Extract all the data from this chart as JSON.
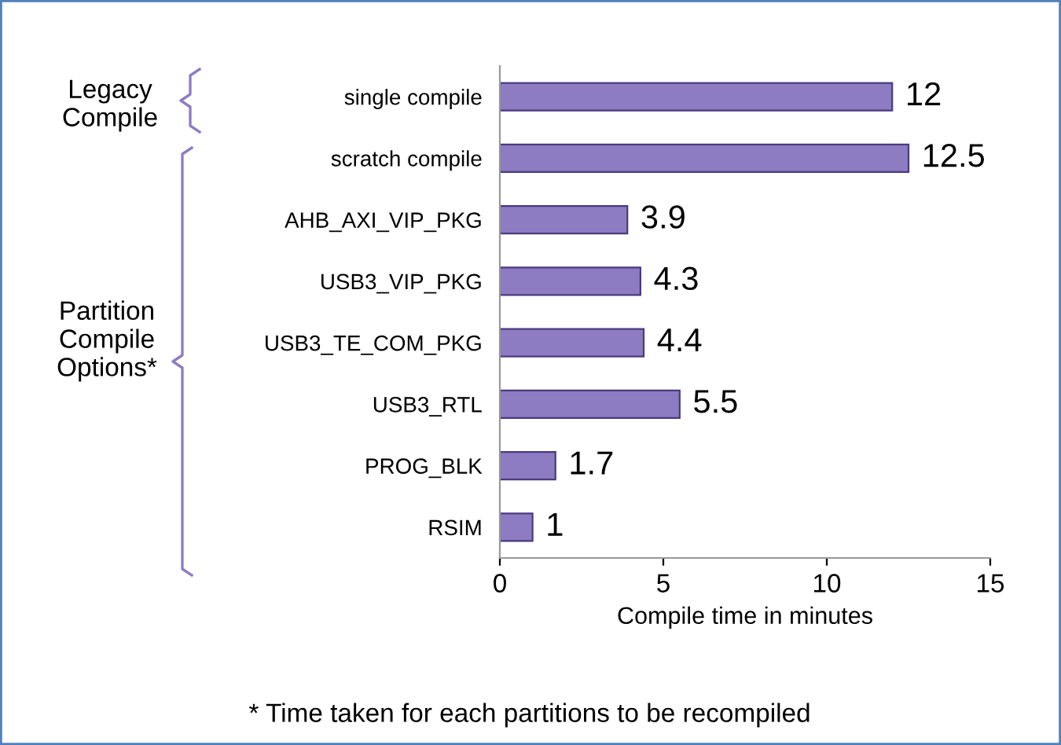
{
  "chart_data": {
    "type": "bar",
    "orientation": "horizontal",
    "categories": [
      "single compile",
      "scratch compile",
      "AHB_AXI_VIP_PKG",
      "USB3_VIP_PKG",
      "USB3_TE_COM_PKG",
      "USB3_RTL",
      "PROG_BLK",
      "RSIM"
    ],
    "values": [
      12,
      12.5,
      3.9,
      4.3,
      4.4,
      5.5,
      1.7,
      1
    ],
    "color": "#8e7cc3",
    "xlim": [
      0,
      15
    ],
    "xticks": [
      0,
      5,
      10,
      15
    ],
    "xlabel": "Compile time in minutes",
    "data_labels": true,
    "grid": false,
    "legend": false,
    "annotations": [
      "Legacy\nCompile",
      "Partition\nCompile\nOptions*",
      "* Time taken for each partitions to be recompiled"
    ]
  }
}
